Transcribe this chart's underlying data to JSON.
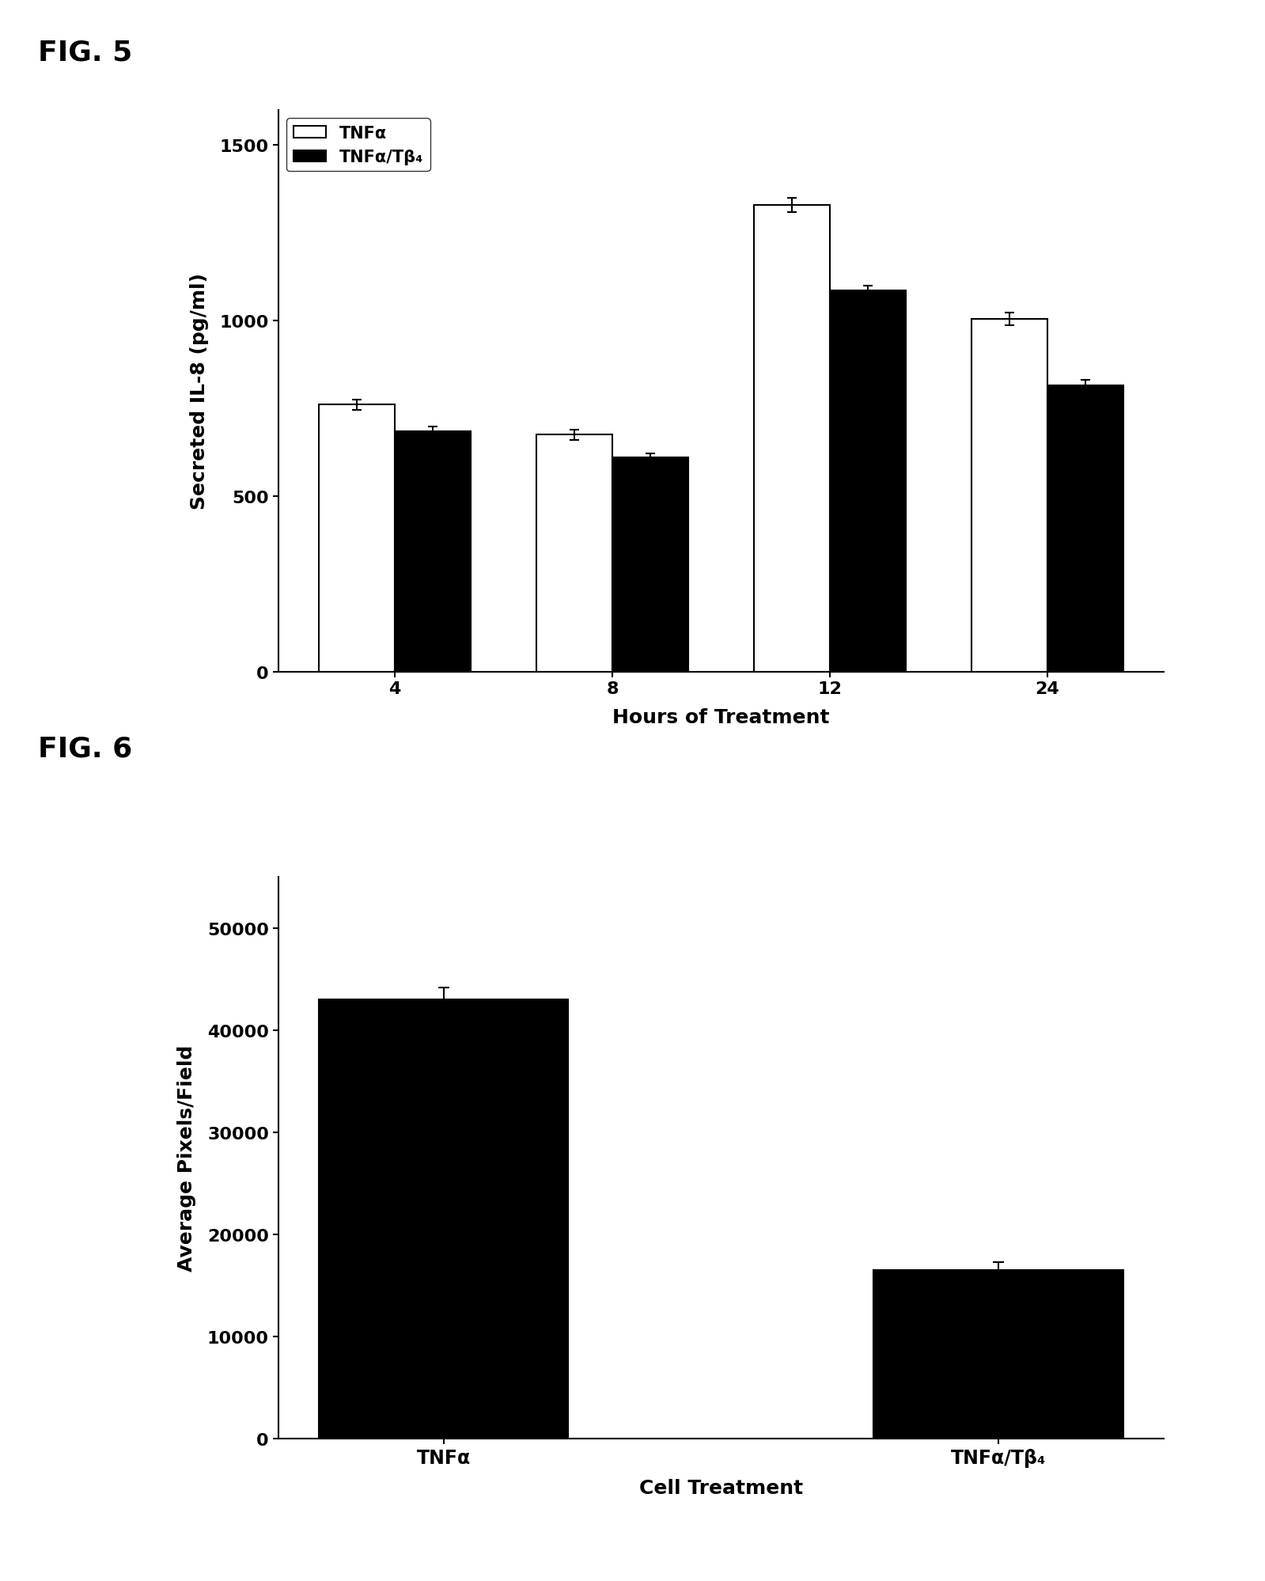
{
  "fig5": {
    "title": "FIG. 5",
    "hours": [
      4,
      8,
      12,
      24
    ],
    "tnfa_values": [
      760,
      675,
      1330,
      1005
    ],
    "tnfa_errors": [
      15,
      15,
      20,
      18
    ],
    "tnfa_tb4_values": [
      685,
      610,
      1085,
      815
    ],
    "tnfa_tb4_errors": [
      12,
      12,
      15,
      15
    ],
    "ylabel": "Secreted IL-8 (pg/ml)",
    "xlabel": "Hours of Treatment",
    "ylim": [
      0,
      1600
    ],
    "yticks": [
      0,
      500,
      1000,
      1500
    ],
    "legend_labels": [
      "TNFα",
      "TNFα/Tβ₄"
    ],
    "bar_width": 0.35,
    "bar_color_tnfa": "#ffffff",
    "bar_color_tnfa_tb4": "#000000",
    "bar_edgecolor": "#000000"
  },
  "fig6": {
    "title": "FIG. 6",
    "categories": [
      "TNFα",
      "TNFα/Tβ₄"
    ],
    "values": [
      43000,
      16500
    ],
    "errors": [
      1200,
      800
    ],
    "ylabel": "Average Pixels/Field",
    "xlabel": "Cell Treatment",
    "ylim": [
      0,
      55000
    ],
    "yticks": [
      0,
      10000,
      20000,
      30000,
      40000,
      50000
    ],
    "bar_color": "#000000",
    "bar_edgecolor": "#000000",
    "bar_width": 0.45
  },
  "background_color": "#ffffff",
  "fig_label_fontsize": 26,
  "axis_label_fontsize": 18,
  "tick_label_fontsize": 16,
  "legend_fontsize": 15
}
